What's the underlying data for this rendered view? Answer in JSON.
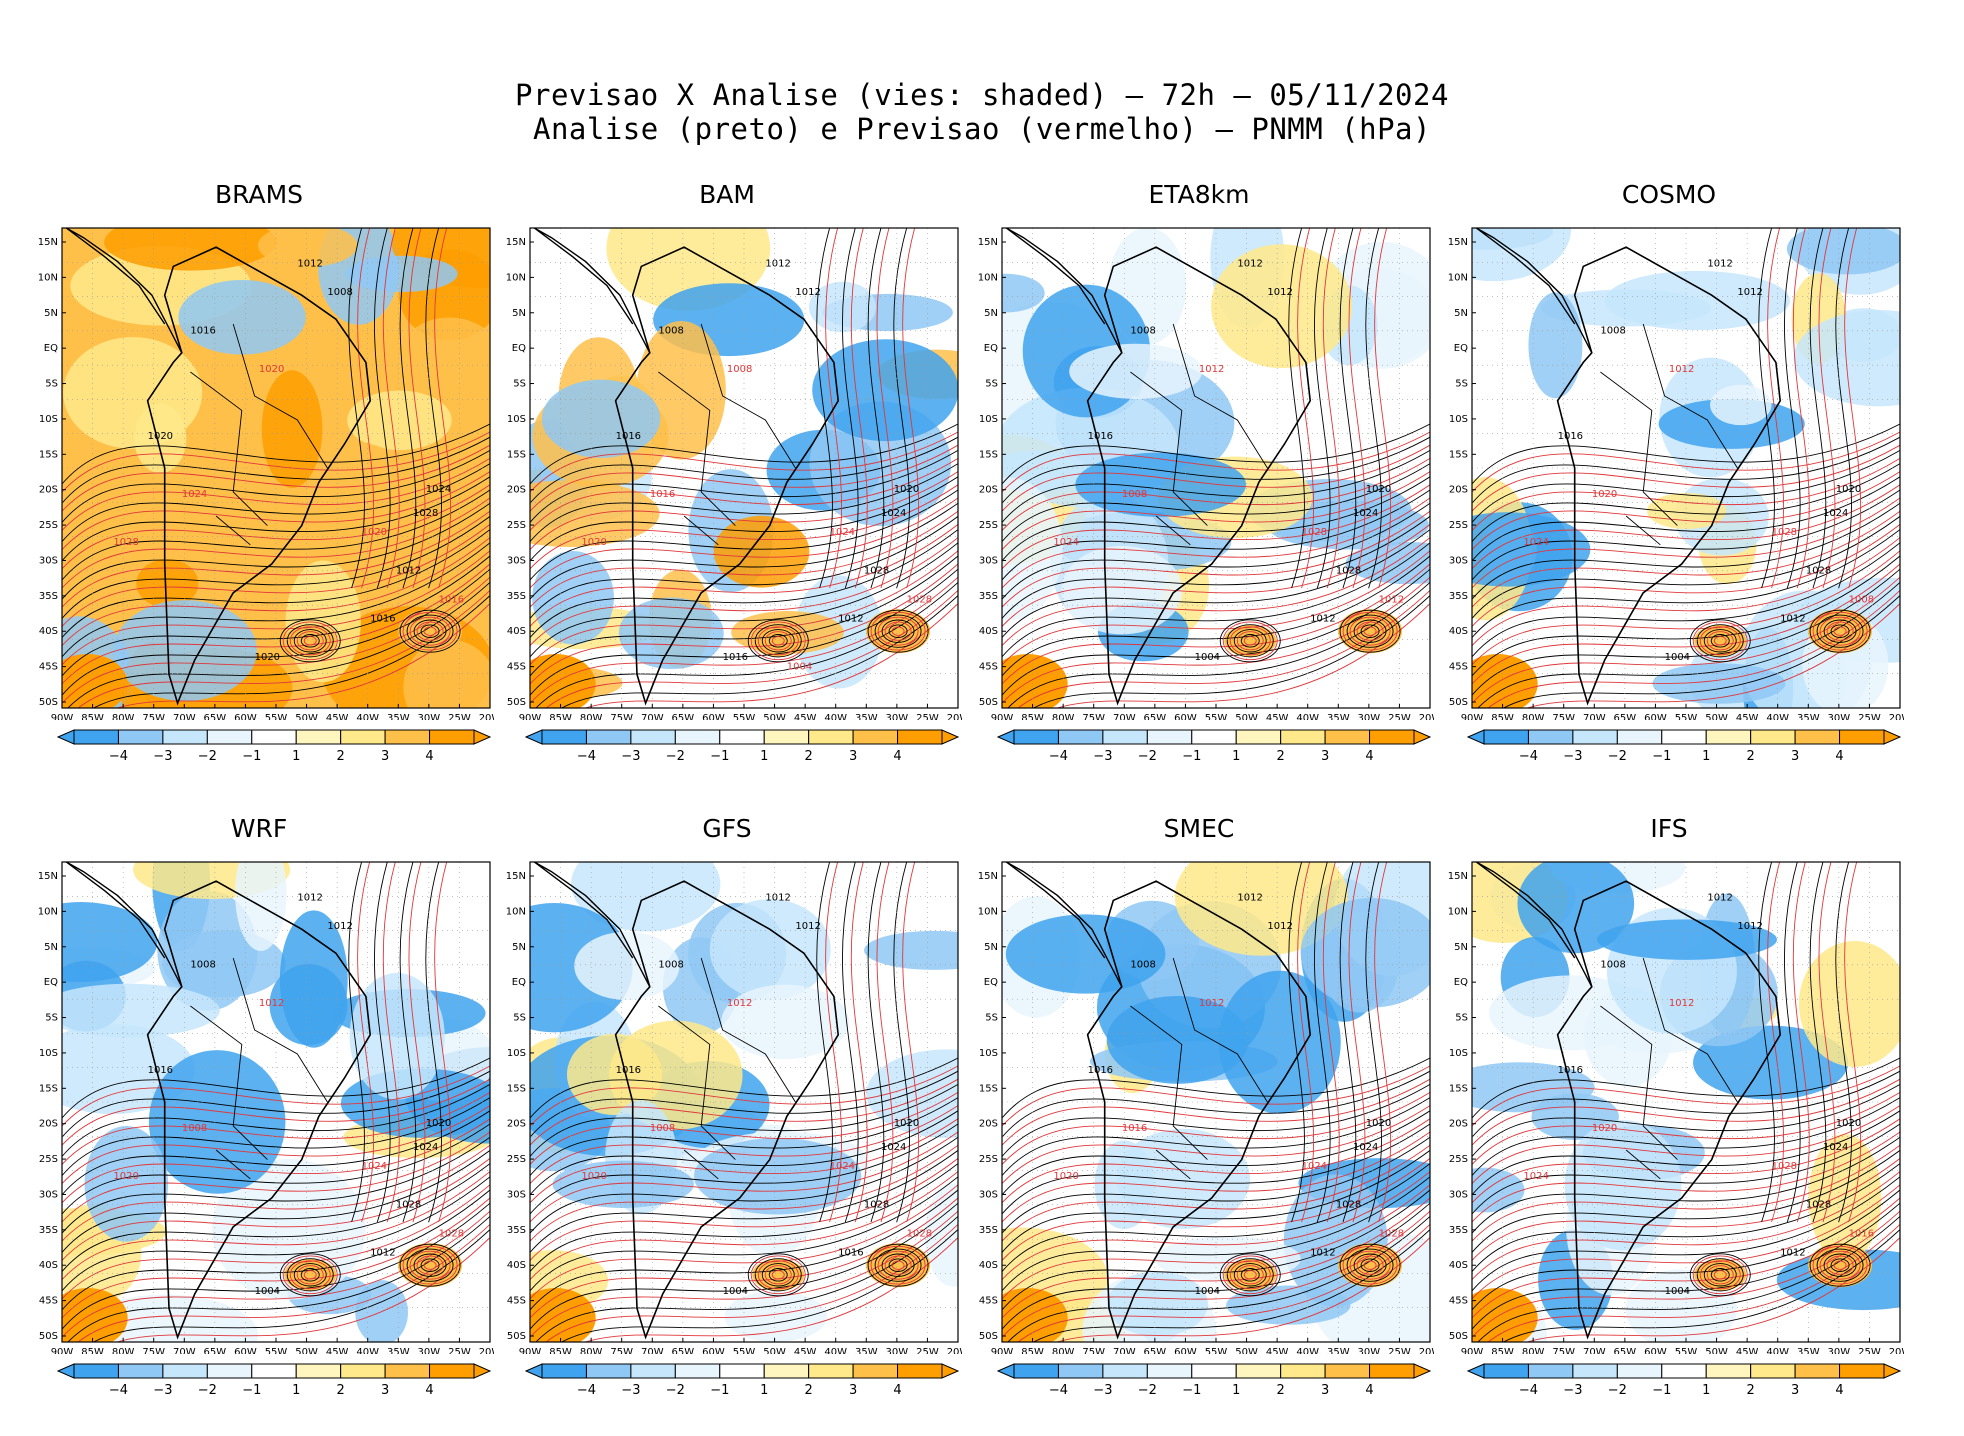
{
  "header": {
    "line1": "Previsao X Analise (vies: shaded) – 72h – 05/11/2024",
    "line2": "Analise (preto) e Previsao (vermelho) – PNMM (hPa)"
  },
  "colors": {
    "neg4": "#3fa3ef",
    "neg3": "#8fc8f5",
    "neg2": "#c6e6fb",
    "neg1": "#e8f5fd",
    "zero": "#ffffff",
    "pos1": "#fff6bf",
    "pos2": "#ffe98a",
    "pos3": "#ffc04a",
    "pos4": "#ff9e00",
    "analysis": "#000000",
    "forecast": "#e0373a",
    "coast": "#000000"
  },
  "axes": {
    "lon_ticks": [
      "90W",
      "85W",
      "80W",
      "75W",
      "70W",
      "65W",
      "60W",
      "55W",
      "50W",
      "45W",
      "40W",
      "35W",
      "30W",
      "25W",
      "20W"
    ],
    "lat_ticks": [
      "15N",
      "10N",
      "5N",
      "EQ",
      "5S",
      "10S",
      "15S",
      "20S",
      "25S",
      "30S",
      "35S",
      "40S",
      "45S",
      "50S"
    ]
  },
  "colorbar_labels": [
    "−4",
    "−3",
    "−2",
    "−1",
    "1",
    "2",
    "3",
    "4"
  ],
  "panels": [
    {
      "title": "BRAMS",
      "tone": "warm",
      "analysis_labels": [
        "1012",
        "1008",
        "1016",
        "1020",
        "1024",
        "1028",
        "1012",
        "1016",
        "1020"
      ],
      "forecast_labels": [
        "1020",
        "1024",
        "1028",
        "1020",
        "1016"
      ]
    },
    {
      "title": "BAM",
      "tone": "mixed",
      "analysis_labels": [
        "1012",
        "1012",
        "1008",
        "1016",
        "1020",
        "1024",
        "1028",
        "1012",
        "1016"
      ],
      "forecast_labels": [
        "1008",
        "1016",
        "1020",
        "1024",
        "1028",
        "1004"
      ]
    },
    {
      "title": "ETA8km",
      "tone": "cool",
      "analysis_labels": [
        "1012",
        "1012",
        "1008",
        "1016",
        "1020",
        "1024",
        "1028",
        "1012",
        "1004"
      ],
      "forecast_labels": [
        "1012",
        "1008",
        "1024",
        "1028",
        "1012"
      ]
    },
    {
      "title": "COSMO",
      "tone": "cool",
      "analysis_labels": [
        "1012",
        "1012",
        "1008",
        "1016",
        "1020",
        "1024",
        "1028",
        "1012",
        "1004"
      ],
      "forecast_labels": [
        "1012",
        "1020",
        "1024",
        "1028",
        "1008"
      ]
    },
    {
      "title": "WRF",
      "tone": "cool",
      "analysis_labels": [
        "1012",
        "1012",
        "1008",
        "1016",
        "1020",
        "1024",
        "1028",
        "1012",
        "1004"
      ],
      "forecast_labels": [
        "1012",
        "1008",
        "1020",
        "1024",
        "1028"
      ]
    },
    {
      "title": "GFS",
      "tone": "cool",
      "analysis_labels": [
        "1012",
        "1012",
        "1008",
        "1016",
        "1020",
        "1024",
        "1028",
        "1016",
        "1004"
      ],
      "forecast_labels": [
        "1012",
        "1008",
        "1020",
        "1024",
        "1028"
      ]
    },
    {
      "title": "SMEC",
      "tone": "cool",
      "analysis_labels": [
        "1012",
        "1012",
        "1008",
        "1016",
        "1020",
        "1024",
        "1028",
        "1012",
        "1004"
      ],
      "forecast_labels": [
        "1012",
        "1016",
        "1020",
        "1024",
        "1028"
      ]
    },
    {
      "title": "IFS",
      "tone": "cool",
      "analysis_labels": [
        "1012",
        "1012",
        "1008",
        "1016",
        "1020",
        "1024",
        "1028",
        "1012",
        "1004"
      ],
      "forecast_labels": [
        "1012",
        "1020",
        "1024",
        "1028",
        "1016"
      ]
    }
  ]
}
